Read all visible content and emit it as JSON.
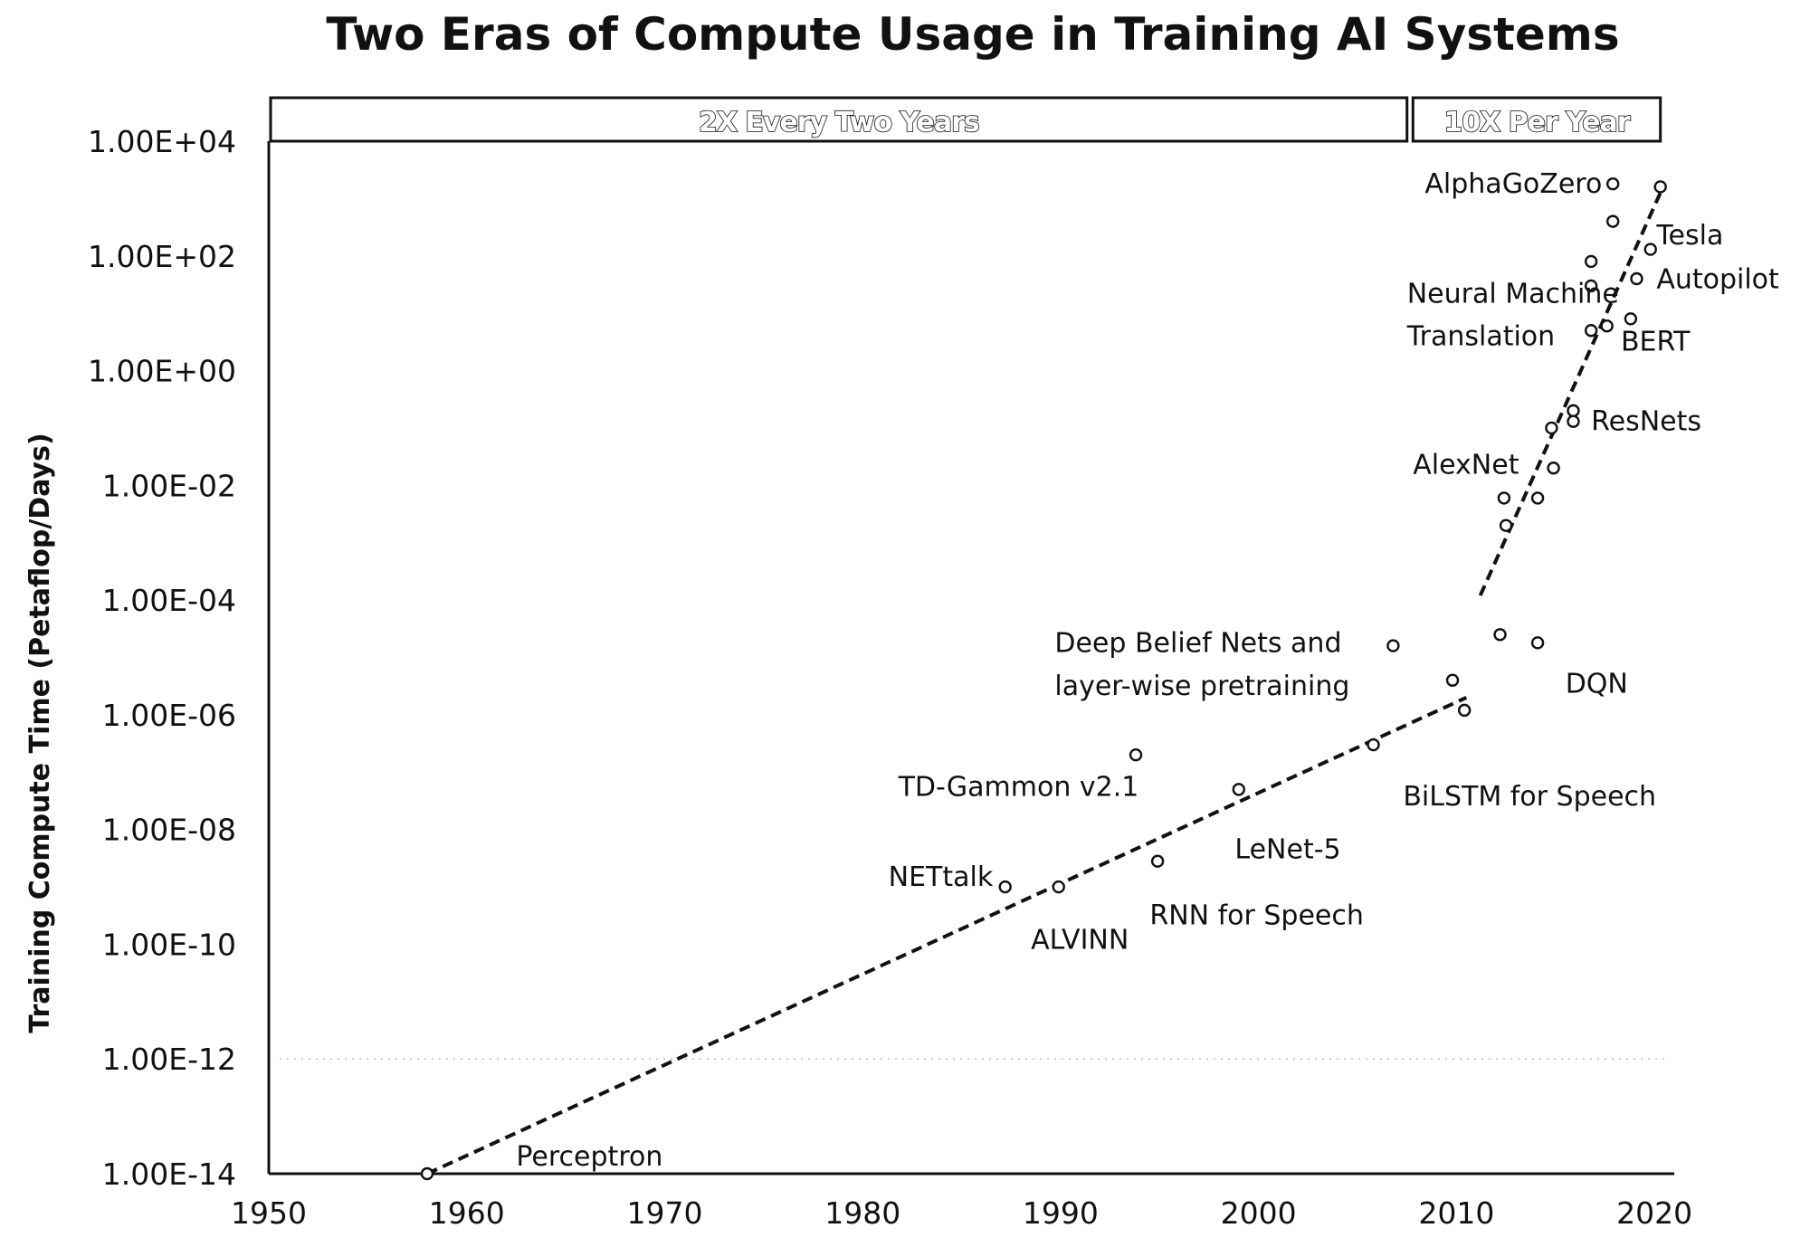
{
  "chart_data": {
    "type": "scatter",
    "title": "Two Eras of Compute Usage in Training AI Systems",
    "ylabel": "Training Compute Time (Petaflop/Days)",
    "xlabel": "",
    "y_scale": "log",
    "xlim": [
      1950,
      2021
    ],
    "ylim_exponent": [
      -14,
      4
    ],
    "x_ticks": [
      "1950",
      "1960",
      "1970",
      "1980",
      "1990",
      "2000",
      "2010",
      "2020"
    ],
    "y_ticks": [
      "1.00E+04",
      "1.00E+02",
      "1.00E+00",
      "1.00E-02",
      "1.00E-04",
      "1.00E-06",
      "1.00E-08",
      "1.00E-10",
      "1.00E-12",
      "1.00E-14"
    ],
    "grid": "dotted line at 1.00E-12",
    "eras": [
      {
        "label": "2X Every Two Years",
        "x_start": 1950,
        "x_end": 2007.5
      },
      {
        "label": "10X Per Year",
        "x_start": 2007.8,
        "x_end": 2020.3
      }
    ],
    "trend_lines": [
      {
        "name": "2X Every Two Years",
        "x": [
          1958,
          2010.5
        ],
        "y": [
          1e-14,
          2e-06
        ]
      },
      {
        "name": "10X Per Year",
        "x": [
          2011.2,
          2020.5
        ],
        "y": [
          0.00012,
          1800.0
        ]
      }
    ],
    "points": [
      {
        "x": 1958,
        "y": 1e-14
      },
      {
        "x": 1987.2,
        "y": 1e-09
      },
      {
        "x": 1989.9,
        "y": 1e-09
      },
      {
        "x": 1993.8,
        "y": 2e-07
      },
      {
        "x": 1994.9,
        "y": 2.8e-09
      },
      {
        "x": 1999.0,
        "y": 5e-08
      },
      {
        "x": 2005.8,
        "y": 3e-07
      },
      {
        "x": 2006.8,
        "y": 1.6e-05
      },
      {
        "x": 2009.8,
        "y": 4e-06
      },
      {
        "x": 2010.4,
        "y": 1.2e-06
      },
      {
        "x": 2012.2,
        "y": 2.5e-05
      },
      {
        "x": 2012.4,
        "y": 0.006
      },
      {
        "x": 2012.5,
        "y": 0.002
      },
      {
        "x": 2014.1,
        "y": 1.8e-05
      },
      {
        "x": 2014.1,
        "y": 0.006
      },
      {
        "x": 2014.8,
        "y": 0.1
      },
      {
        "x": 2014.9,
        "y": 0.02
      },
      {
        "x": 2015.9,
        "y": 0.2
      },
      {
        "x": 2015.9,
        "y": 0.13
      },
      {
        "x": 2016.8,
        "y": 30.0
      },
      {
        "x": 2016.8,
        "y": 80.0
      },
      {
        "x": 2016.8,
        "y": 5.0
      },
      {
        "x": 2017.6,
        "y": 6.0
      },
      {
        "x": 2017.9,
        "y": 400.0
      },
      {
        "x": 2017.9,
        "y": 1800.0
      },
      {
        "x": 2018.8,
        "y": 8.0
      },
      {
        "x": 2019.1,
        "y": 40.0
      },
      {
        "x": 2019.8,
        "y": 130.0
      },
      {
        "x": 2020.3,
        "y": 1600.0
      }
    ],
    "annotations": [
      {
        "text": "Perceptron",
        "x": 1962.5,
        "y": 2e-14
      },
      {
        "text": "NETtalk",
        "x": 1981.3,
        "y": 1.5e-09
      },
      {
        "text": "ALVINN",
        "x": 1988.5,
        "y": 1.2e-10
      },
      {
        "text": "TD-Gammon v2.1",
        "x": 1981.8,
        "y": 5.5e-08
      },
      {
        "text": "RNN for Speech",
        "x": 1994.5,
        "y": 3.2e-10
      },
      {
        "text": "LeNet-5",
        "x": 1998.8,
        "y": 4.5e-09
      },
      {
        "text": "BiLSTM for Speech",
        "x": 2007.3,
        "y": 3.8e-08
      },
      {
        "text": "Deep Belief Nets and",
        "x": 1989.7,
        "y": 1.8e-05
      },
      {
        "text": "layer-wise pretraining",
        "x": 1989.7,
        "y": 3.2e-06
      },
      {
        "text": "DQN",
        "x": 2015.5,
        "y": 3.5e-06
      },
      {
        "text": "AlexNet",
        "x": 2007.8,
        "y": 0.023
      },
      {
        "text": "ResNets",
        "x": 2016.8,
        "y": 0.13
      },
      {
        "text": "Neural Machine",
        "x": 2007.5,
        "y": 22.0
      },
      {
        "text": "Translation",
        "x": 2007.5,
        "y": 4.0
      },
      {
        "text": "BERT",
        "x": 2018.3,
        "y": 3.2
      },
      {
        "text": "AlphaGoZero",
        "x": 2008.4,
        "y": 1800.0
      },
      {
        "text": "Tesla",
        "x": 2020.1,
        "y": 230.0
      },
      {
        "text": "Autopilot",
        "x": 2020.1,
        "y": 39.0
      }
    ]
  }
}
